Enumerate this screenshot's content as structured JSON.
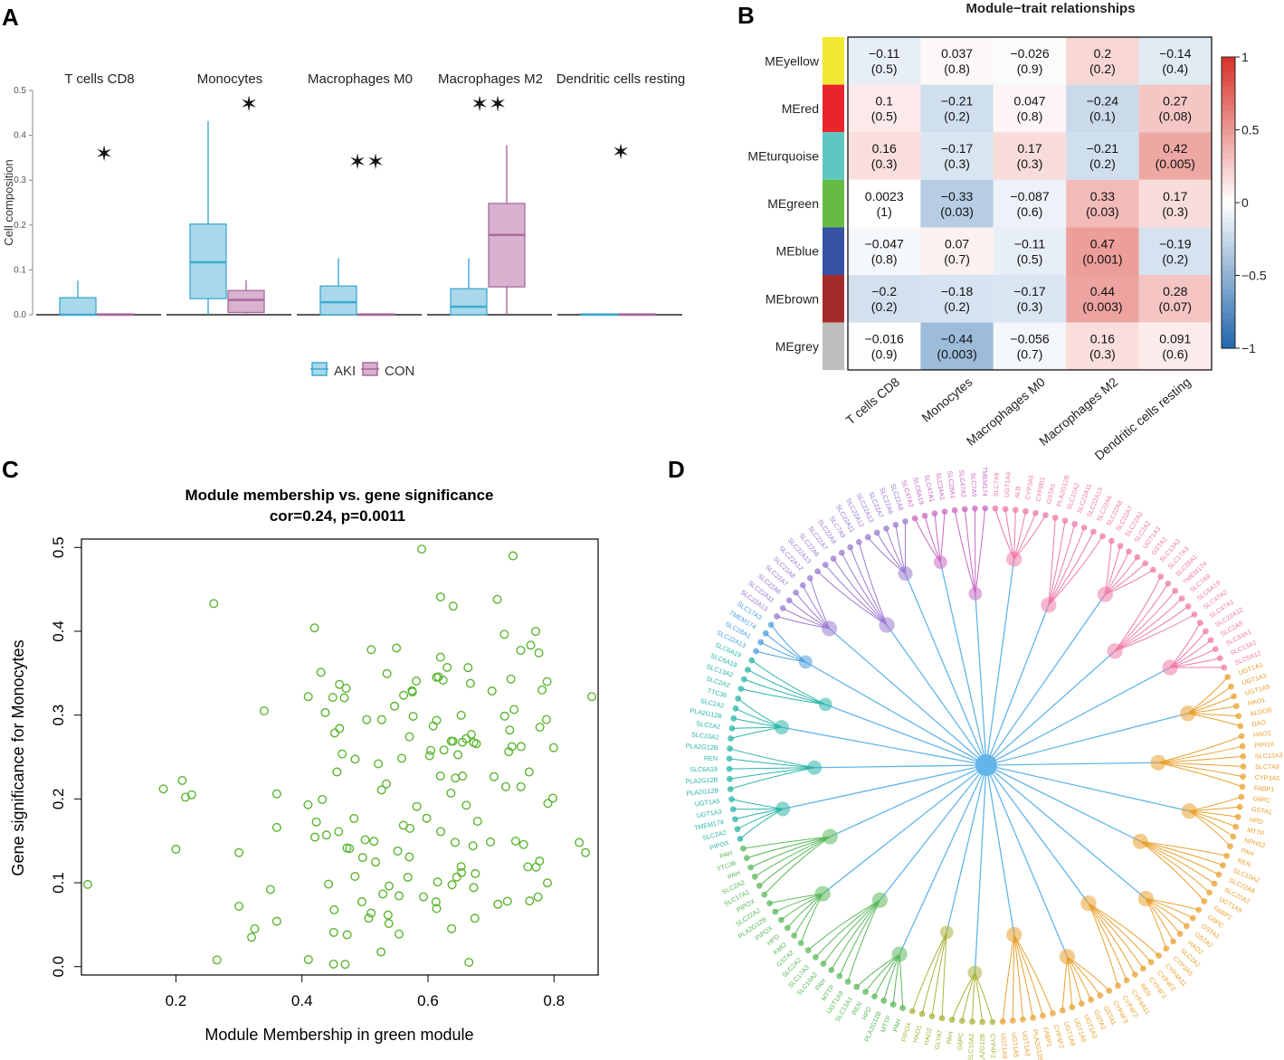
{
  "panels": {
    "a": "A",
    "b": "B",
    "c": "C",
    "d": "D"
  },
  "chart_data": [
    {
      "id": "A",
      "type": "box",
      "ylabel": "Cell composition",
      "yticks": [
        "0.0",
        "0.1",
        "0.2",
        "0.3",
        "0.4",
        "0.5"
      ],
      "ylim": [
        0,
        0.5
      ],
      "legend": [
        {
          "name": "AKI",
          "fill": "#a8d8ea",
          "stroke": "#3fa9d0"
        },
        {
          "name": "CON",
          "fill": "#d8b2cf",
          "stroke": "#a86a9c"
        }
      ],
      "facets": [
        {
          "title": "T cells CD8",
          "sig": "*",
          "AKI": {
            "min": 0,
            "q1": 0,
            "median": 0,
            "q3": 0.038,
            "max": 0.076
          },
          "CON": {
            "min": 0,
            "q1": 0,
            "median": 0,
            "q3": 0.002,
            "max": 0.002
          }
        },
        {
          "title": "Monocytes",
          "sig": "*",
          "AKI": {
            "min": 0,
            "q1": 0.036,
            "median": 0.117,
            "q3": 0.202,
            "max": 0.432
          },
          "CON": {
            "min": 0,
            "q1": 0.005,
            "median": 0.033,
            "q3": 0.054,
            "max": 0.077
          }
        },
        {
          "title": "Macrophages M0",
          "sig": "**",
          "AKI": {
            "min": 0,
            "q1": 0,
            "median": 0.028,
            "q3": 0.064,
            "max": 0.126
          },
          "CON": {
            "min": 0,
            "q1": 0,
            "median": 0,
            "q3": 0.002,
            "max": 0.002
          }
        },
        {
          "title": "Macrophages M2",
          "sig": "**",
          "AKI": {
            "min": 0,
            "q1": 0,
            "median": 0.018,
            "q3": 0.058,
            "max": 0.126
          },
          "CON": {
            "min": 0,
            "q1": 0.062,
            "median": 0.178,
            "q3": 0.248,
            "max": 0.378
          }
        },
        {
          "title": "Dendritic cells resting",
          "sig": "*",
          "AKI": {
            "min": 0,
            "q1": 0,
            "median": 0,
            "q3": 0.002,
            "max": 0.002
          },
          "CON": {
            "min": 0,
            "q1": 0,
            "median": 0,
            "q3": 0.002,
            "max": 0.002
          }
        }
      ]
    },
    {
      "id": "B",
      "type": "heatmap",
      "title": "Module−trait relationships",
      "rows": [
        {
          "name": "MEyellow",
          "color": "#f2e833"
        },
        {
          "name": "MEred",
          "color": "#e8252b"
        },
        {
          "name": "MEturquoise",
          "color": "#5ec6c3"
        },
        {
          "name": "MEgreen",
          "color": "#66bb44"
        },
        {
          "name": "MEblue",
          "color": "#3552a5"
        },
        {
          "name": "MEbrown",
          "color": "#a52a2a"
        },
        {
          "name": "MEgrey",
          "color": "#bebebe"
        }
      ],
      "columns": [
        "T cells CD8",
        "Monocytes",
        "Macrophages M0",
        "Macrophages M2",
        "Dendritic cells resting"
      ],
      "cor_labels": [
        [
          "−0.11",
          "0.037",
          "−0.026",
          "0.2",
          "−0.14"
        ],
        [
          "0.1",
          "−0.21",
          "0.047",
          "−0.24",
          "0.27"
        ],
        [
          "0.16",
          "−0.17",
          "0.17",
          "−0.21",
          "0.42"
        ],
        [
          "0.0023",
          "−0.33",
          "−0.087",
          "0.33",
          "0.17"
        ],
        [
          "−0.047",
          "0.07",
          "−0.11",
          "0.47",
          "−0.19"
        ],
        [
          "−0.2",
          "−0.18",
          "−0.17",
          "0.44",
          "0.28"
        ],
        [
          "−0.016",
          "−0.44",
          "−0.056",
          "0.16",
          "0.091"
        ]
      ],
      "cor_values": [
        [
          -0.11,
          0.037,
          -0.026,
          0.2,
          -0.14
        ],
        [
          0.1,
          -0.21,
          0.047,
          -0.24,
          0.27
        ],
        [
          0.16,
          -0.17,
          0.17,
          -0.21,
          0.42
        ],
        [
          0.0023,
          -0.33,
          -0.087,
          0.33,
          0.17
        ],
        [
          -0.047,
          0.07,
          -0.11,
          0.47,
          -0.19
        ],
        [
          -0.2,
          -0.18,
          -0.17,
          0.44,
          0.28
        ],
        [
          -0.016,
          -0.44,
          -0.056,
          0.16,
          0.091
        ]
      ],
      "p_values": [
        [
          "(0.5)",
          "(0.8)",
          "(0.9)",
          "(0.2)",
          "(0.4)"
        ],
        [
          "(0.5)",
          "(0.2)",
          "(0.8)",
          "(0.1)",
          "(0.08)"
        ],
        [
          "(0.3)",
          "(0.3)",
          "(0.3)",
          "(0.2)",
          "(0.005)"
        ],
        [
          "(1)",
          "(0.03)",
          "(0.6)",
          "(0.03)",
          "(0.3)"
        ],
        [
          "(0.8)",
          "(0.7)",
          "(0.5)",
          "(0.001)",
          "(0.2)"
        ],
        [
          "(0.2)",
          "(0.2)",
          "(0.3)",
          "(0.003)",
          "(0.07)"
        ],
        [
          "(0.9)",
          "(0.003)",
          "(0.7)",
          "(0.3)",
          "(0.6)"
        ]
      ],
      "colorbar_ticks": [
        "1",
        "0.5",
        "0",
        "−0.5",
        "−1"
      ],
      "colorbar_range": [
        -1,
        1
      ]
    },
    {
      "id": "C",
      "type": "scatter",
      "title": "Module membership vs. gene significance",
      "subtitle": "cor=0.24, p=0.0011",
      "xlabel": "Module Membership in green module",
      "ylabel": "Gene significance for Monocytes",
      "xlim": [
        0.05,
        0.87
      ],
      "ylim": [
        -0.01,
        0.51
      ],
      "xticks": [
        {
          "v": 0.2,
          "t": "0.2"
        },
        {
          "v": 0.4,
          "t": "0.4"
        },
        {
          "v": 0.6,
          "t": "0.6"
        },
        {
          "v": 0.8,
          "t": "0.8"
        }
      ],
      "yticks": [
        {
          "v": 0,
          "t": "0.0"
        },
        {
          "v": 0.1,
          "t": "0.1"
        },
        {
          "v": 0.2,
          "t": "0.2"
        },
        {
          "v": 0.3,
          "t": "0.3"
        },
        {
          "v": 0.4,
          "t": "0.4"
        },
        {
          "v": 0.5,
          "t": "0.5"
        }
      ],
      "point_color": "#5cb531",
      "n_points": 170,
      "anchor_points": [
        [
          0.06,
          0.098
        ],
        [
          0.18,
          0.212
        ],
        [
          0.2,
          0.14
        ],
        [
          0.21,
          0.222
        ],
        [
          0.215,
          0.202
        ],
        [
          0.225,
          0.205
        ],
        [
          0.26,
          0.433
        ],
        [
          0.265,
          0.008
        ],
        [
          0.3,
          0.072
        ],
        [
          0.3,
          0.136
        ],
        [
          0.32,
          0.035
        ],
        [
          0.325,
          0.045
        ],
        [
          0.34,
          0.305
        ],
        [
          0.35,
          0.092
        ],
        [
          0.36,
          0.054
        ],
        [
          0.36,
          0.166
        ],
        [
          0.36,
          0.206
        ],
        [
          0.42,
          0.404
        ],
        [
          0.43,
          0.351
        ],
        [
          0.41,
          0.322
        ],
        [
          0.51,
          0.378
        ],
        [
          0.55,
          0.38
        ],
        [
          0.59,
          0.498
        ],
        [
          0.62,
          0.441
        ],
        [
          0.64,
          0.43
        ],
        [
          0.71,
          0.438
        ],
        [
          0.735,
          0.49
        ],
        [
          0.86,
          0.322
        ],
        [
          0.84,
          0.148
        ],
        [
          0.85,
          0.136
        ],
        [
          0.665,
          0.005
        ],
        [
          0.45,
          0.003
        ]
      ]
    },
    {
      "id": "D",
      "type": "network",
      "hub": "hub",
      "groups": [
        {
          "name": "pink",
          "color": "#ee7aa8",
          "labels": [
            "SLC7A9",
            "UGT1A9",
            "ALB",
            "CYP3A5",
            "CYP8B1",
            "GSTA1",
            "PLA2G12B",
            "SLC10A2",
            "SLC22A11",
            "SLC22A13",
            "SLC22A6",
            "SLC22A8",
            "SLC22A7",
            "SLC22A2",
            "SLC2A2",
            "UGT1A3",
            "GSTA2",
            "SLC13A3",
            "SLC17A3",
            "SLC28A1",
            "TMEM174",
            "SLC7A9",
            "SLC6A19",
            "SLC47A2",
            "SLC47A1",
            "SLC22A12",
            "SLC2A9",
            "SLC34A1",
            "SLC13A1",
            "SLC5A12"
          ]
        },
        {
          "name": "orange",
          "color": "#e8a130",
          "labels": [
            "UGT1A1",
            "UGT1A3",
            "UGT1A9",
            "HAO1",
            "ALDOB",
            "DAO",
            "HAO2",
            "PIPOX",
            "SLC13A3",
            "SLC7A9",
            "CYP3A5",
            "FABP1",
            "G6PC",
            "GSTA1",
            "HPD",
            "MTTP",
            "NPHS2",
            "PAH",
            "REN",
            "SLC10A2",
            "SLC22A8",
            "SLC22A2",
            "UGT1A9",
            "FABP1",
            "G6PC",
            "GSTA1",
            "GSTA2",
            "HAO2",
            "SLC2A2",
            "CYP3A5",
            "CYP4A11",
            "CYP4F2",
            "CYP4F3",
            "REN",
            "CYP4A11",
            "CYP4F2",
            "CYP4F3",
            "GSTA1",
            "GSTA2",
            "UGT1A3",
            "UGT1A5",
            "UGT1A9",
            "CYP4F2",
            "FABP1",
            "PLA2G12B",
            "UGT1A3",
            "UGT1A5",
            "UGT1A9"
          ]
        },
        {
          "name": "olive",
          "color": "#a9b23a",
          "labels": [
            "CYP4F2",
            "PLA2G12B",
            "SLC10A2",
            "G6PC",
            "PAH",
            "GLYAT",
            "HAO2",
            "HAO1",
            "PIPOX"
          ]
        },
        {
          "name": "green",
          "color": "#5cb85c",
          "labels": [
            "PAH",
            "MTTP",
            "PLA2G12B",
            "HPD",
            "REN",
            "SLC13A1",
            "UGT1A9",
            "MTTP",
            "PAH",
            "SLC10A2",
            "SLC17A3",
            "SLC2A2",
            "GSTA2",
            "KMO",
            "HPD",
            "PIPOX",
            "PLA2G12B",
            "SLC22A2",
            "PIPOX",
            "SLC17A1",
            "SLC2A2",
            "PAH",
            "TTC36",
            "PAH"
          ]
        },
        {
          "name": "teal",
          "color": "#2bb5a8",
          "labels": [
            "PIPOX",
            "SLC2A2",
            "TMEM174",
            "UGT1A3",
            "UGT1A5",
            "PLA2G12B",
            "PLA2G12B",
            "SLC6A19",
            "REN",
            "PLA2G12B",
            "SLC10A2",
            "SLC2A2",
            "PLA2G12B",
            "SLC2A2",
            "TTC36",
            "SLC2A2",
            "SLC13A2",
            "SLC6A19",
            "SLC6A19"
          ]
        },
        {
          "name": "blue",
          "color": "#4b9fdc",
          "labels": [
            "SLC22A13",
            "SLC28A1",
            "TMEM174",
            "SLC17A3"
          ]
        },
        {
          "name": "purple",
          "color": "#9b7bd0",
          "labels": [
            "SLC22A13",
            "SLC22A11",
            "SLC22A6",
            "SLC22A7",
            "SLC22A8",
            "SLC22A12",
            "SLC22A13",
            "SLC22A6",
            "SLC22A7",
            "SLC22A8",
            "SLC7A9",
            "SLC22A11",
            "SLC22A12",
            "SLC22A13",
            "SLC22A7",
            "SLC22A6",
            "SLC22A8"
          ]
        },
        {
          "name": "magenta",
          "color": "#c869c1",
          "labels": [
            "SLC47A2",
            "SLC6A19",
            "SLC47A1",
            "SLC34A1",
            "SLC28A1",
            "SLC47A2",
            "SLC7A9",
            "TMEM174"
          ]
        }
      ],
      "edge_color": "#63b5e9"
    }
  ]
}
